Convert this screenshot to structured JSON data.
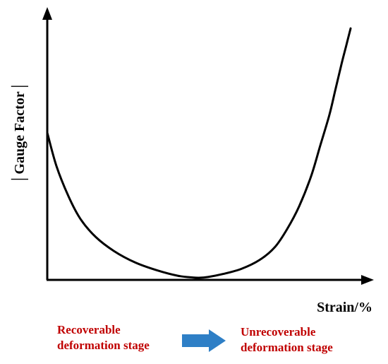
{
  "chart_data": {
    "type": "line",
    "title": "",
    "xlabel": "Strain/%",
    "ylabel": "│Gauge Factor│",
    "xlim": [
      0,
      100
    ],
    "ylim": [
      0,
      100
    ],
    "grid": false,
    "legend": "none",
    "series": [
      {
        "color": "#000000",
        "x": [
          0,
          3,
          7,
          11,
          16,
          22,
          29,
          36,
          43,
          48,
          50,
          53,
          58,
          64,
          70,
          75,
          79,
          83,
          87,
          90,
          93,
          95,
          97,
          98.5,
          100
        ],
        "y": [
          57,
          44,
          32,
          23,
          16,
          10.5,
          6,
          3,
          0.8,
          0.1,
          0,
          0.3,
          1.5,
          3.5,
          7,
          12,
          19,
          28,
          40,
          52,
          64,
          74,
          84,
          91,
          98
        ]
      }
    ]
  },
  "stages": {
    "left": {
      "line1": "Recoverable",
      "line2": "deformation stage"
    },
    "right": {
      "line1": "Unrecoverable",
      "line2": "deformation stage"
    },
    "arrow_color": "#2e7fc6",
    "label_color": "#c00000"
  }
}
